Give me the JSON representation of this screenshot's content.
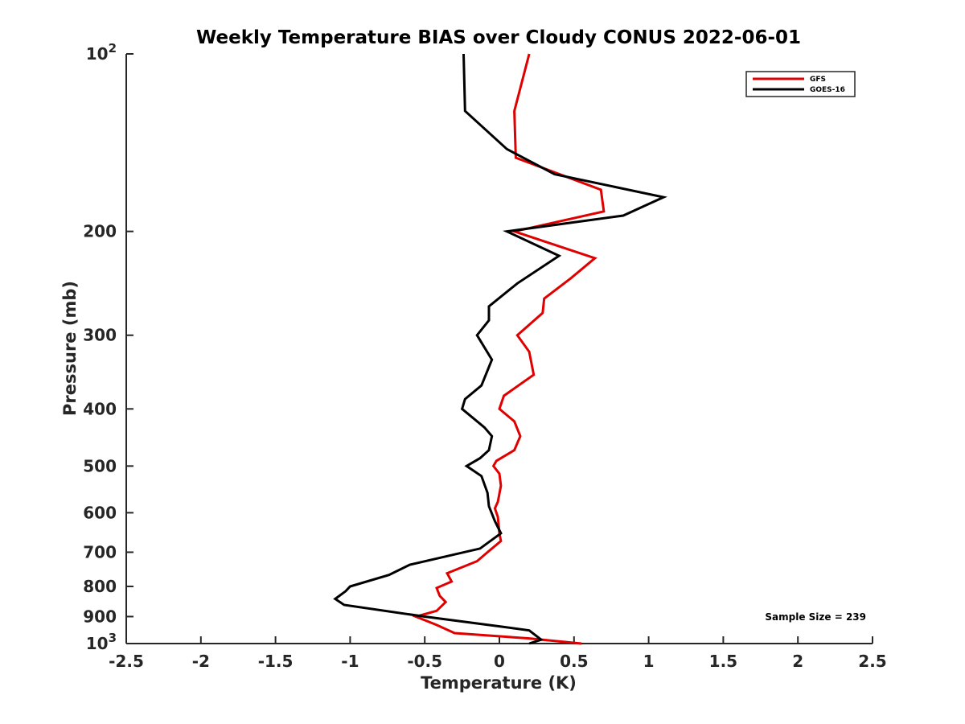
{
  "chart_data": {
    "type": "line",
    "title": "Weekly Temperature BIAS over Cloudy CONUS 2022-06-01",
    "xlabel": "Temperature (K)",
    "ylabel": "Pressure (mb)",
    "xlim": [
      -2.5,
      2.5
    ],
    "ylim": [
      100,
      1000
    ],
    "y_scale": "log",
    "y_reversed": true,
    "x_ticks": [
      "-2.5",
      "-2",
      "-1.5",
      "-1",
      "-0.5",
      "0",
      "0.5",
      "1",
      "1.5",
      "2",
      "2.5"
    ],
    "y_ticks": [
      {
        "value": 100,
        "label": "10",
        "exp": "2"
      },
      {
        "value": 200,
        "label": "200"
      },
      {
        "value": 300,
        "label": "300"
      },
      {
        "value": 400,
        "label": "400"
      },
      {
        "value": 500,
        "label": "500"
      },
      {
        "value": 600,
        "label": "600"
      },
      {
        "value": 700,
        "label": "700"
      },
      {
        "value": 800,
        "label": "800"
      },
      {
        "value": 900,
        "label": "900"
      },
      {
        "value": 1000,
        "label": "10",
        "exp": "3"
      }
    ],
    "grid": false,
    "legend_position": "top-right",
    "annotation": "Sample Size = 239",
    "series": [
      {
        "name": "GFS",
        "color": "#e00000",
        "points": [
          [
            0.2,
            100
          ],
          [
            0.1,
            125
          ],
          [
            0.11,
            150
          ],
          [
            0.68,
            170
          ],
          [
            0.7,
            185
          ],
          [
            0.1,
            200
          ],
          [
            0.64,
            222
          ],
          [
            0.48,
            240
          ],
          [
            0.3,
            260
          ],
          [
            0.29,
            275
          ],
          [
            0.12,
            300
          ],
          [
            0.2,
            320
          ],
          [
            0.23,
            350
          ],
          [
            0.03,
            380
          ],
          [
            0.0,
            400
          ],
          [
            0.1,
            420
          ],
          [
            0.14,
            445
          ],
          [
            0.1,
            470
          ],
          [
            -0.02,
            490
          ],
          [
            -0.04,
            500
          ],
          [
            0.0,
            515
          ],
          [
            0.01,
            540
          ],
          [
            -0.01,
            575
          ],
          [
            -0.03,
            590
          ],
          [
            -0.01,
            610
          ],
          [
            0.0,
            650
          ],
          [
            0.01,
            670
          ],
          [
            -0.08,
            700
          ],
          [
            -0.15,
            725
          ],
          [
            -0.35,
            760
          ],
          [
            -0.32,
            785
          ],
          [
            -0.42,
            805
          ],
          [
            -0.4,
            830
          ],
          [
            -0.36,
            850
          ],
          [
            -0.38,
            860
          ],
          [
            -0.42,
            880
          ],
          [
            -0.56,
            900
          ],
          [
            -0.42,
            930
          ],
          [
            -0.3,
            960
          ],
          [
            0.2,
            980
          ],
          [
            0.55,
            1000
          ]
        ]
      },
      {
        "name": "GOES-16",
        "color": "#000000",
        "points": [
          [
            -0.24,
            100
          ],
          [
            -0.23,
            125
          ],
          [
            0.05,
            145
          ],
          [
            0.37,
            160
          ],
          [
            1.1,
            175
          ],
          [
            0.83,
            188
          ],
          [
            0.05,
            200
          ],
          [
            0.4,
            220
          ],
          [
            0.12,
            245
          ],
          [
            -0.07,
            268
          ],
          [
            -0.07,
            283
          ],
          [
            -0.15,
            300
          ],
          [
            -0.05,
            330
          ],
          [
            -0.12,
            365
          ],
          [
            -0.23,
            385
          ],
          [
            -0.25,
            400
          ],
          [
            -0.1,
            430
          ],
          [
            -0.05,
            445
          ],
          [
            -0.07,
            470
          ],
          [
            -0.13,
            485
          ],
          [
            -0.22,
            500
          ],
          [
            -0.12,
            520
          ],
          [
            -0.08,
            555
          ],
          [
            -0.07,
            585
          ],
          [
            -0.03,
            620
          ],
          [
            0.01,
            650
          ],
          [
            -0.13,
            690
          ],
          [
            -0.6,
            735
          ],
          [
            -0.74,
            765
          ],
          [
            -1.0,
            800
          ],
          [
            -1.03,
            815
          ],
          [
            -1.1,
            840
          ],
          [
            -1.04,
            860
          ],
          [
            -0.5,
            900
          ],
          [
            0.0,
            935
          ],
          [
            0.2,
            950
          ],
          [
            0.28,
            985
          ],
          [
            0.2,
            1000
          ]
        ]
      }
    ]
  }
}
